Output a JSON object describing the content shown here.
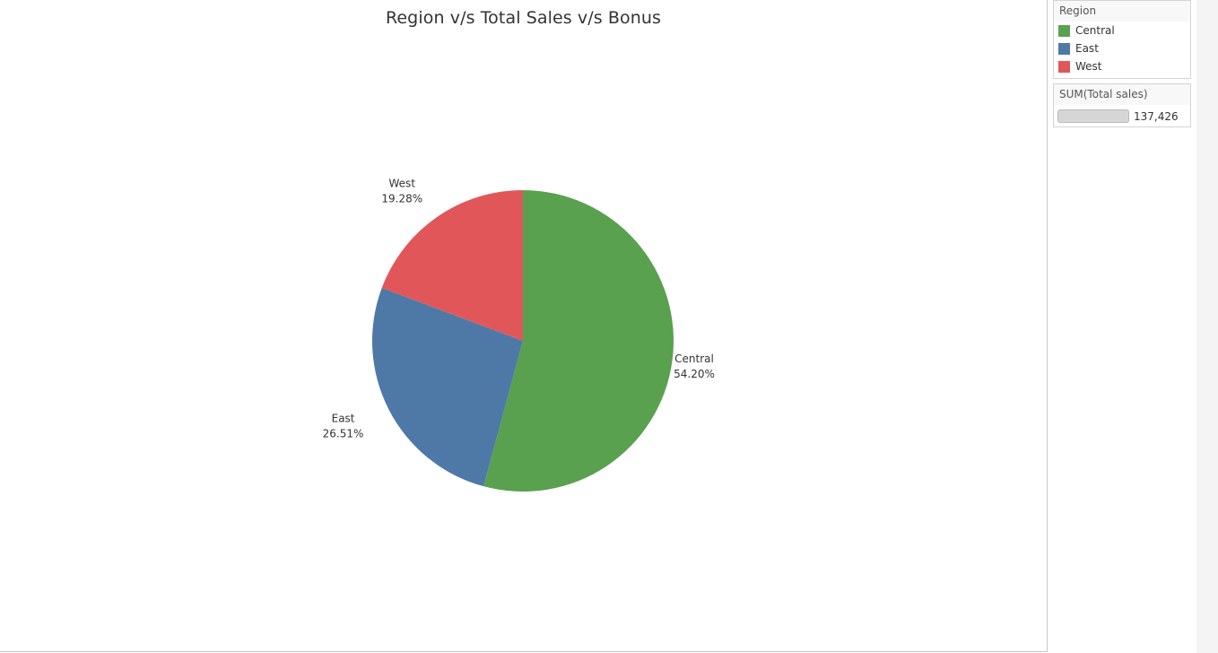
{
  "chart_data": {
    "type": "pie",
    "title": "Region v/s Total Sales v/s Bonus",
    "slices": [
      {
        "label": "Central",
        "percent_label": "54.20%",
        "value": 54.2,
        "color": "#59a14f"
      },
      {
        "label": "East",
        "percent_label": "26.51%",
        "value": 26.51,
        "color": "#4e79a7"
      },
      {
        "label": "West",
        "percent_label": "19.28%",
        "value": 19.28,
        "color": "#e15759"
      }
    ],
    "start_angle_deg": 0,
    "direction": "clockwise"
  },
  "legend": {
    "title": "Region",
    "items": [
      {
        "label": "Central",
        "color": "#59a14f"
      },
      {
        "label": "East",
        "color": "#4e79a7"
      },
      {
        "label": "West",
        "color": "#e15759"
      }
    ]
  },
  "size_legend": {
    "title": "SUM(Total sales)",
    "value": "137,426"
  }
}
